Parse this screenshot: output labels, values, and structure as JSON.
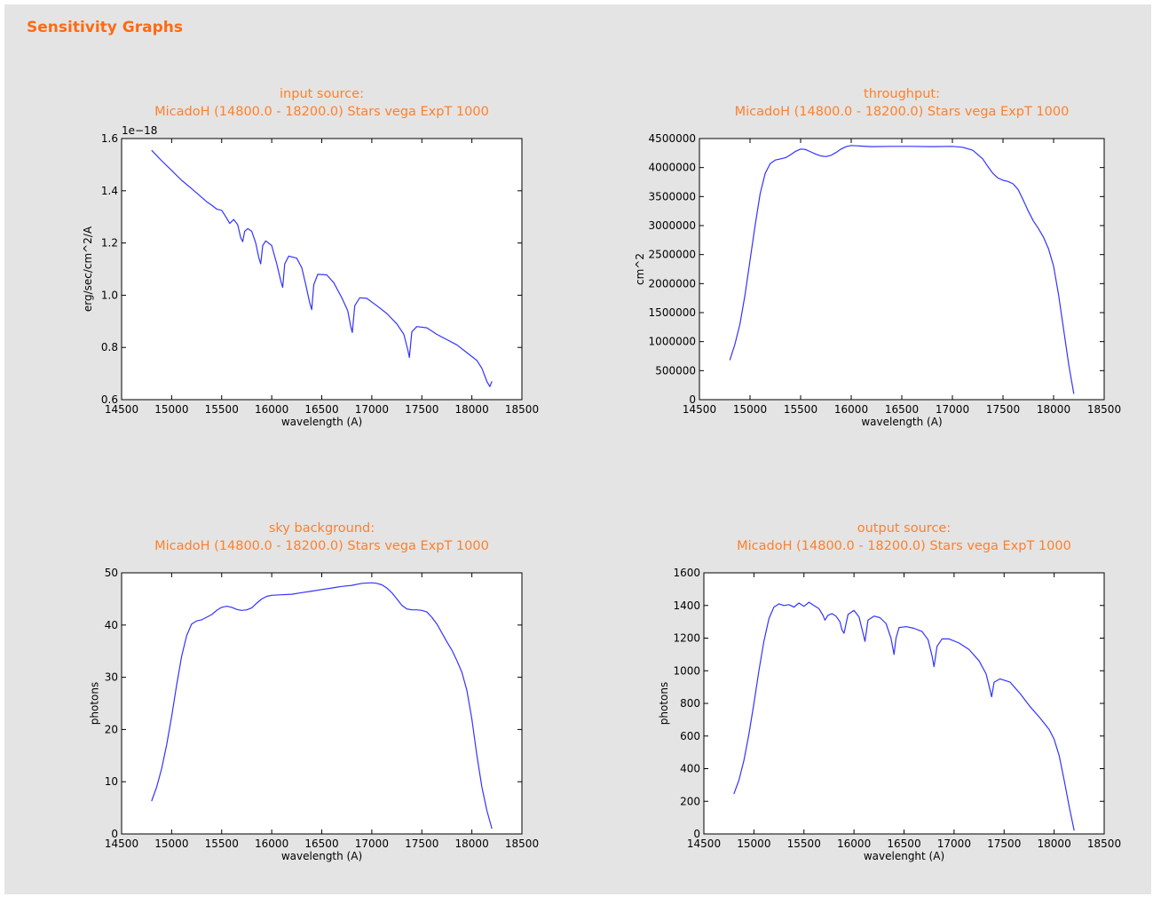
{
  "page": {
    "title": "Sensitivity Graphs"
  },
  "colors": {
    "title": "#ff6a13",
    "chart_title": "#ff7f2a",
    "line": "#3333ff",
    "background": "#e4e4e4"
  },
  "chart_data": [
    {
      "id": "input-source",
      "type": "line",
      "title": "input source:",
      "subtitle": "MicadoH (14800.0 - 18200.0) Stars vega ExpT 1000",
      "xlabel": "wavelength (A)",
      "ylabel": "erg/sec/cm^2/A",
      "xlim": [
        14500,
        18500
      ],
      "ylim": [
        0.6,
        1.6
      ],
      "offset_label": "1e−18",
      "grid": false,
      "xticks": [
        14500,
        15000,
        15500,
        16000,
        16500,
        17000,
        17500,
        18000,
        18500
      ],
      "yticks": [
        0.6,
        0.8,
        1.0,
        1.2,
        1.4,
        1.6
      ],
      "ytick_labels": [
        "0.6",
        "0.8",
        "1.0",
        "1.2",
        "1.4",
        "1.6"
      ],
      "series": [
        {
          "x": [
            14800,
            14900,
            15000,
            15100,
            15200,
            15300,
            15350,
            15400,
            15450,
            15500,
            15550,
            15580,
            15620,
            15660,
            15690,
            15710,
            15730,
            15760,
            15800,
            15840,
            15870,
            15890,
            15910,
            15940,
            16000,
            16050,
            16090,
            16110,
            16130,
            16170,
            16250,
            16300,
            16340,
            16380,
            16400,
            16420,
            16460,
            16550,
            16620,
            16700,
            16760,
            16790,
            16805,
            16830,
            16880,
            16950,
            17050,
            17150,
            17250,
            17320,
            17360,
            17375,
            17400,
            17450,
            17550,
            17650,
            17750,
            17850,
            17950,
            18050,
            18100,
            18150,
            18180,
            18200
          ],
          "y": [
            1.555,
            1.515,
            1.478,
            1.44,
            1.408,
            1.375,
            1.358,
            1.345,
            1.33,
            1.325,
            1.295,
            1.275,
            1.29,
            1.27,
            1.22,
            1.205,
            1.245,
            1.255,
            1.245,
            1.2,
            1.145,
            1.12,
            1.19,
            1.208,
            1.19,
            1.12,
            1.055,
            1.03,
            1.12,
            1.15,
            1.142,
            1.105,
            1.04,
            0.97,
            0.945,
            1.04,
            1.08,
            1.078,
            1.048,
            0.99,
            0.94,
            0.88,
            0.857,
            0.96,
            0.99,
            0.988,
            0.96,
            0.93,
            0.89,
            0.85,
            0.79,
            0.762,
            0.86,
            0.88,
            0.875,
            0.85,
            0.83,
            0.81,
            0.78,
            0.75,
            0.72,
            0.67,
            0.65,
            0.67
          ]
        }
      ]
    },
    {
      "id": "throughput",
      "type": "line",
      "title": "throughput:",
      "subtitle": "MicadoH (14800.0 - 18200.0) Stars vega ExpT 1000",
      "xlabel": "wavelength (A)",
      "ylabel": "cm^2",
      "xlim": [
        14500,
        18500
      ],
      "ylim": [
        0,
        4500000
      ],
      "grid": false,
      "xticks": [
        14500,
        15000,
        15500,
        16000,
        16500,
        17000,
        17500,
        18000,
        18500
      ],
      "yticks": [
        0,
        500000,
        1000000,
        1500000,
        2000000,
        2500000,
        3000000,
        3500000,
        4000000,
        4500000
      ],
      "ytick_labels": [
        "0",
        "500000",
        "1000000",
        "1500000",
        "2000000",
        "2500000",
        "3000000",
        "3500000",
        "4000000",
        "4500000"
      ],
      "series": [
        {
          "x": [
            14800,
            14850,
            14900,
            14950,
            15000,
            15050,
            15100,
            15150,
            15200,
            15250,
            15300,
            15350,
            15400,
            15450,
            15500,
            15550,
            15600,
            15650,
            15700,
            15750,
            15800,
            15850,
            15900,
            15950,
            16000,
            16050,
            16100,
            16200,
            16400,
            16600,
            16800,
            17000,
            17100,
            17200,
            17300,
            17350,
            17400,
            17450,
            17500,
            17550,
            17600,
            17650,
            17700,
            17750,
            17800,
            17850,
            17900,
            17950,
            18000,
            18050,
            18100,
            18150,
            18200
          ],
          "y": [
            680000,
            950000,
            1300000,
            1800000,
            2400000,
            3000000,
            3550000,
            3900000,
            4070000,
            4130000,
            4150000,
            4170000,
            4220000,
            4280000,
            4320000,
            4310000,
            4270000,
            4230000,
            4200000,
            4190000,
            4210000,
            4260000,
            4320000,
            4360000,
            4380000,
            4375000,
            4370000,
            4360000,
            4365000,
            4365000,
            4360000,
            4365000,
            4350000,
            4300000,
            4150000,
            4020000,
            3900000,
            3820000,
            3780000,
            3760000,
            3720000,
            3620000,
            3440000,
            3250000,
            3080000,
            2950000,
            2800000,
            2600000,
            2300000,
            1800000,
            1200000,
            600000,
            100000
          ]
        }
      ]
    },
    {
      "id": "sky-background",
      "type": "line",
      "title": "sky background:",
      "subtitle": "MicadoH (14800.0 - 18200.0) Stars vega ExpT 1000",
      "xlabel": "wavelength (A)",
      "ylabel": "photons",
      "xlim": [
        14500,
        18500
      ],
      "ylim": [
        0,
        50
      ],
      "grid": false,
      "xticks": [
        14500,
        15000,
        15500,
        16000,
        16500,
        17000,
        17500,
        18000,
        18500
      ],
      "yticks": [
        0,
        10,
        20,
        30,
        40,
        50
      ],
      "ytick_labels": [
        "0",
        "10",
        "20",
        "30",
        "40",
        "50"
      ],
      "series": [
        {
          "x": [
            14800,
            14850,
            14900,
            14950,
            15000,
            15050,
            15100,
            15150,
            15200,
            15250,
            15300,
            15350,
            15400,
            15450,
            15500,
            15550,
            15600,
            15650,
            15700,
            15750,
            15800,
            15850,
            15900,
            15950,
            16000,
            16100,
            16200,
            16300,
            16400,
            16500,
            16600,
            16700,
            16800,
            16900,
            17000,
            17050,
            17100,
            17150,
            17200,
            17250,
            17300,
            17350,
            17400,
            17450,
            17500,
            17550,
            17600,
            17650,
            17700,
            17750,
            17800,
            17850,
            17900,
            17950,
            18000,
            18050,
            18100,
            18150,
            18200
          ],
          "y": [
            6.3,
            9,
            12.5,
            17,
            22.5,
            28.5,
            34,
            38,
            40.2,
            40.8,
            41,
            41.5,
            42,
            42.8,
            43.4,
            43.6,
            43.4,
            43,
            42.8,
            42.9,
            43.3,
            44.2,
            45,
            45.5,
            45.7,
            45.8,
            45.9,
            46.2,
            46.5,
            46.8,
            47.1,
            47.4,
            47.6,
            48,
            48.1,
            48,
            47.7,
            47.1,
            46.2,
            45,
            43.8,
            43.1,
            42.9,
            42.9,
            42.8,
            42.5,
            41.5,
            40.2,
            38.5,
            36.8,
            35.2,
            33.2,
            31,
            27.5,
            22,
            15,
            9,
            4.5,
            1
          ]
        }
      ]
    },
    {
      "id": "output-source",
      "type": "line",
      "title": "output source:",
      "subtitle": "MicadoH (14800.0 - 18200.0) Stars vega ExpT 1000",
      "xlabel": "wavelenght (A)",
      "ylabel": "photons",
      "xlim": [
        14500,
        18500
      ],
      "ylim": [
        0,
        1600
      ],
      "grid": false,
      "xticks": [
        14500,
        15000,
        15500,
        16000,
        16500,
        17000,
        17500,
        18000,
        18500
      ],
      "yticks": [
        0,
        200,
        400,
        600,
        800,
        1000,
        1200,
        1400,
        1600
      ],
      "ytick_labels": [
        "0",
        "200",
        "400",
        "600",
        "800",
        "1000",
        "1200",
        "1400",
        "1600"
      ],
      "series": [
        {
          "x": [
            14800,
            14850,
            14900,
            14950,
            15000,
            15050,
            15100,
            15150,
            15200,
            15250,
            15300,
            15350,
            15400,
            15450,
            15500,
            15550,
            15600,
            15650,
            15690,
            15710,
            15740,
            15780,
            15820,
            15860,
            15880,
            15900,
            15940,
            16000,
            16050,
            16090,
            16110,
            16140,
            16200,
            16260,
            16320,
            16370,
            16400,
            16420,
            16450,
            16520,
            16600,
            16680,
            16740,
            16780,
            16800,
            16830,
            16880,
            16950,
            17050,
            17150,
            17250,
            17320,
            17360,
            17375,
            17400,
            17460,
            17560,
            17660,
            17760,
            17860,
            17950,
            18000,
            18050,
            18100,
            18150,
            18200
          ],
          "y": [
            245,
            330,
            450,
            610,
            800,
            1000,
            1180,
            1320,
            1390,
            1410,
            1400,
            1405,
            1390,
            1415,
            1395,
            1420,
            1400,
            1380,
            1340,
            1310,
            1340,
            1350,
            1335,
            1300,
            1250,
            1230,
            1345,
            1370,
            1330,
            1230,
            1180,
            1310,
            1335,
            1325,
            1290,
            1200,
            1100,
            1200,
            1265,
            1270,
            1260,
            1240,
            1190,
            1090,
            1025,
            1150,
            1195,
            1195,
            1170,
            1130,
            1060,
            980,
            880,
            840,
            930,
            950,
            930,
            860,
            780,
            710,
            640,
            580,
            480,
            330,
            170,
            20
          ]
        }
      ]
    }
  ]
}
